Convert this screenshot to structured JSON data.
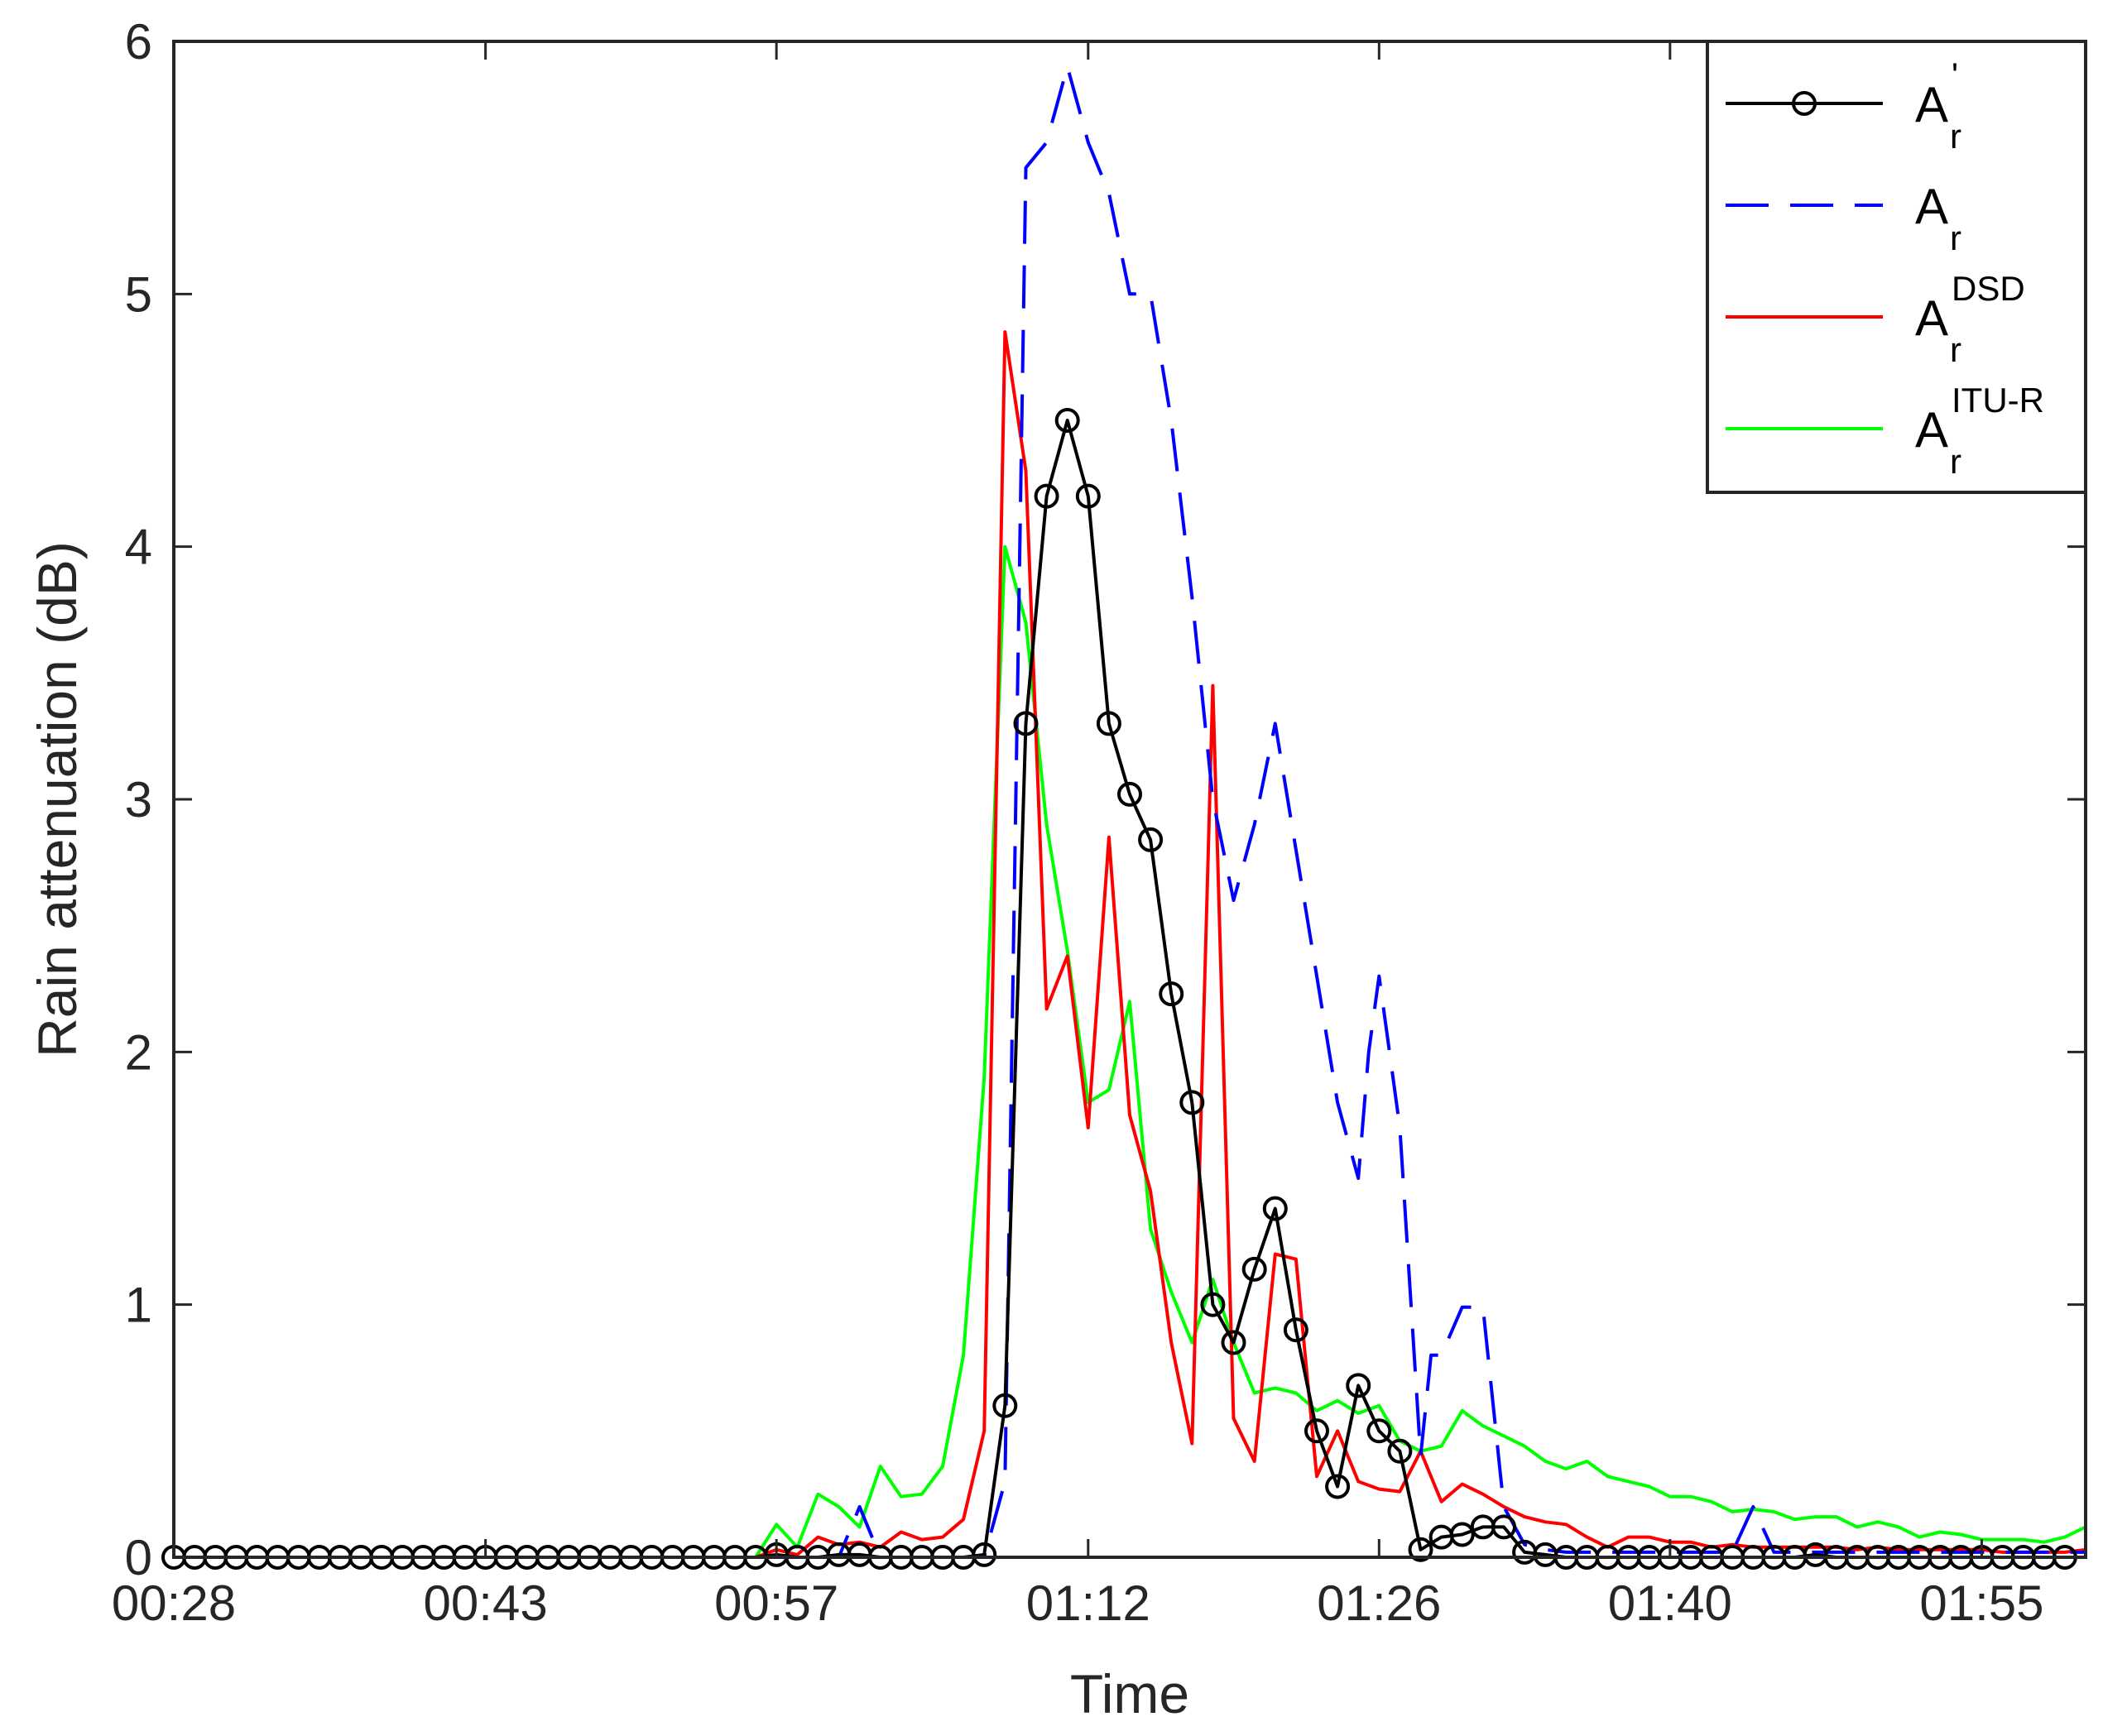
{
  "chart_data": {
    "type": "line",
    "xlabel": "Time",
    "ylabel": "Rain attenuation (dB)",
    "x_tick_labels": [
      "00:28",
      "00:43",
      "00:57",
      "01:12",
      "01:26",
      "01:40",
      "01:55"
    ],
    "y_tick_labels": [
      "0",
      "1",
      "2",
      "3",
      "4",
      "5",
      "6"
    ],
    "ylim": [
      0,
      6
    ],
    "xlim": [
      "00:28",
      "02:00"
    ],
    "grid": false,
    "legend_position": "top-right",
    "legend": [
      {
        "base": "A",
        "sup": "'",
        "sub": "r",
        "color": "#000000",
        "style": "solid-circle"
      },
      {
        "base": "A",
        "sup": "",
        "sub": "r",
        "color": "#0000ff",
        "style": "dashed"
      },
      {
        "base": "A",
        "sup": "DSD",
        "sub": "r",
        "color": "#ff0000",
        "style": "solid"
      },
      {
        "base": "A",
        "sup": "ITU-R",
        "sub": "r",
        "color": "#00ff00",
        "style": "solid"
      }
    ],
    "series": [
      {
        "name": "A'_r",
        "color": "#000000",
        "style": "solid",
        "marker": "circle",
        "x": [
          "00:28",
          "00:29",
          "00:30",
          "00:31",
          "00:32",
          "00:33",
          "00:34",
          "00:35",
          "00:36",
          "00:37",
          "00:38",
          "00:39",
          "00:40",
          "00:41",
          "00:42",
          "00:43",
          "00:44",
          "00:45",
          "00:46",
          "00:47",
          "00:48",
          "00:49",
          "00:50",
          "00:51",
          "00:52",
          "00:53",
          "00:54",
          "00:55",
          "00:56",
          "00:57",
          "00:58",
          "00:59",
          "01:00",
          "01:01",
          "01:02",
          "01:03",
          "01:04",
          "01:05",
          "01:06",
          "01:07",
          "01:08",
          "01:09",
          "01:10",
          "01:11",
          "01:12",
          "01:13",
          "01:14",
          "01:15",
          "01:16",
          "01:17",
          "01:18",
          "01:19",
          "01:20",
          "01:21",
          "01:22",
          "01:23",
          "01:24",
          "01:25",
          "01:26",
          "01:27",
          "01:28",
          "01:29",
          "01:30",
          "01:31",
          "01:32",
          "01:33",
          "01:34",
          "01:35",
          "01:36",
          "01:37",
          "01:38",
          "01:39",
          "01:40",
          "01:41",
          "01:42",
          "01:43",
          "01:44",
          "01:45",
          "01:46",
          "01:47",
          "01:48",
          "01:49",
          "01:50",
          "01:51",
          "01:52",
          "01:53",
          "01:54",
          "01:55",
          "01:56",
          "01:57",
          "01:58",
          "01:59"
        ],
        "y": [
          0,
          0,
          0,
          0,
          0,
          0,
          0,
          0,
          0,
          0,
          0,
          0,
          0,
          0,
          0,
          0,
          0,
          0,
          0,
          0,
          0,
          0,
          0,
          0,
          0,
          0,
          0,
          0,
          0,
          0.01,
          0,
          0,
          0.01,
          0.01,
          0,
          0,
          0,
          0,
          0,
          0.01,
          0.6,
          3.3,
          4.2,
          4.5,
          4.2,
          3.3,
          3.02,
          2.84,
          2.23,
          1.8,
          1.0,
          0.85,
          1.14,
          1.38,
          0.9,
          0.5,
          0.28,
          0.68,
          0.5,
          0.42,
          0.03,
          0.08,
          0.09,
          0.12,
          0.12,
          0.02,
          0.01,
          0,
          0,
          0,
          0,
          0,
          0,
          0,
          0,
          0,
          0,
          0,
          0,
          0.01,
          0,
          0,
          0,
          0,
          0,
          0,
          0,
          0,
          0,
          0,
          0,
          0
        ]
      },
      {
        "name": "A_r",
        "color": "#0000ff",
        "style": "dashed",
        "x": [
          "00:28",
          "00:57",
          "00:59",
          "01:00",
          "01:01",
          "01:02",
          "01:03",
          "01:04",
          "01:05",
          "01:06",
          "01:07",
          "01:08",
          "01:09",
          "01:10",
          "01:11",
          "01:12",
          "01:13",
          "01:14",
          "01:15",
          "01:16",
          "01:17",
          "01:18",
          "01:18:30",
          "01:19",
          "01:20",
          "01:21",
          "01:22",
          "01:23",
          "01:24",
          "01:25",
          "01:25:30",
          "01:26",
          "01:26:30",
          "01:27",
          "01:28",
          "01:28:30",
          "01:29",
          "01:30",
          "01:31",
          "01:32",
          "01:33",
          "01:34",
          "01:35",
          "01:43",
          "01:44",
          "01:45",
          "01:46",
          "01:47",
          "01:48",
          "01:49",
          "01:50",
          "01:51",
          "01:52",
          "01:53",
          "01:54",
          "01:55",
          "01:56",
          "01:57",
          "01:58",
          "01:59",
          "02:00"
        ],
        "y": [
          0,
          0,
          0,
          0,
          0.2,
          0,
          0,
          0,
          0,
          0,
          0,
          0.3,
          5.5,
          5.6,
          5.9,
          5.6,
          5.4,
          5.0,
          5.0,
          4.5,
          3.8,
          3.0,
          2.8,
          2.6,
          2.9,
          3.3,
          2.8,
          2.3,
          1.8,
          1.5,
          2.0,
          2.3,
          2.0,
          1.7,
          0.4,
          0.8,
          0.8,
          0.99,
          0.99,
          0.2,
          0.05,
          0.03,
          0.02,
          0.02,
          0.2,
          0.02,
          0.02,
          0.02,
          0.02,
          0.02,
          0.02,
          0.02,
          0.02,
          0.02,
          0.02,
          0.02,
          0.02,
          0.02,
          0.02,
          0.02,
          0.02
        ]
      },
      {
        "name": "A_r^DSD",
        "color": "#ff0000",
        "style": "solid",
        "x": [
          "00:28",
          "00:56",
          "00:57",
          "00:58",
          "00:59",
          "01:00",
          "01:01",
          "01:02",
          "01:03",
          "01:04",
          "01:05",
          "01:06",
          "01:07",
          "01:08",
          "01:09",
          "01:10",
          "01:11",
          "01:12",
          "01:13",
          "01:14",
          "01:15",
          "01:16",
          "01:17",
          "01:18",
          "01:19",
          "01:20",
          "01:21",
          "01:22",
          "01:23",
          "01:24",
          "01:25",
          "01:26",
          "01:27",
          "01:28",
          "01:29",
          "01:30",
          "01:31",
          "01:32",
          "01:33",
          "01:34",
          "01:35",
          "01:36",
          "01:37",
          "01:38",
          "01:39",
          "01:40",
          "01:41",
          "01:42",
          "01:43",
          "01:44",
          "01:45",
          "01:46",
          "01:47",
          "01:48",
          "01:49",
          "01:50",
          "01:51",
          "01:52",
          "01:53",
          "01:54",
          "01:55",
          "01:56",
          "01:57",
          "01:58",
          "01:59",
          "02:00"
        ],
        "y": [
          0,
          0,
          0.03,
          0.01,
          0.08,
          0.05,
          0.06,
          0.04,
          0.1,
          0.07,
          0.08,
          0.15,
          0.5,
          4.85,
          4.3,
          2.17,
          2.38,
          1.7,
          2.85,
          1.75,
          1.45,
          0.85,
          0.45,
          3.45,
          0.55,
          0.38,
          1.2,
          1.18,
          0.32,
          0.5,
          0.3,
          0.27,
          0.26,
          0.42,
          0.22,
          0.29,
          0.25,
          0.2,
          0.16,
          0.14,
          0.13,
          0.08,
          0.04,
          0.08,
          0.08,
          0.06,
          0.06,
          0.04,
          0.05,
          0.04,
          0.04,
          0.04,
          0.04,
          0.04,
          0.03,
          0.04,
          0.03,
          0.03,
          0.03,
          0.03,
          0.03,
          0.02,
          0.02,
          0.02,
          0.02,
          0.03
        ]
      },
      {
        "name": "A_r^ITU-R",
        "color": "#00ff00",
        "style": "solid",
        "x": [
          "00:28",
          "00:56",
          "00:57",
          "00:58",
          "00:59",
          "01:00",
          "01:01",
          "01:02",
          "01:03",
          "01:04",
          "01:05",
          "01:06",
          "01:07",
          "01:08",
          "01:09",
          "01:10",
          "01:11",
          "01:12",
          "01:13",
          "01:14",
          "01:15",
          "01:16",
          "01:17",
          "01:18",
          "01:19",
          "01:20",
          "01:21",
          "01:22",
          "01:23",
          "01:24",
          "01:25",
          "01:26",
          "01:27",
          "01:28",
          "01:29",
          "01:30",
          "01:31",
          "01:32",
          "01:33",
          "01:34",
          "01:35",
          "01:36",
          "01:37",
          "01:38",
          "01:39",
          "01:40",
          "01:41",
          "01:42",
          "01:43",
          "01:44",
          "01:45",
          "01:46",
          "01:47",
          "01:48",
          "01:49",
          "01:50",
          "01:51",
          "01:52",
          "01:53",
          "01:54",
          "01:55",
          "01:56",
          "01:57",
          "01:58",
          "01:59",
          "02:00"
        ],
        "y": [
          0,
          0,
          0.13,
          0.04,
          0.25,
          0.2,
          0.12,
          0.36,
          0.24,
          0.25,
          0.36,
          0.8,
          1.9,
          4.0,
          3.7,
          2.9,
          2.4,
          1.8,
          1.85,
          2.2,
          1.3,
          1.05,
          0.85,
          1.1,
          0.85,
          0.65,
          0.67,
          0.65,
          0.58,
          0.62,
          0.57,
          0.6,
          0.46,
          0.42,
          0.44,
          0.58,
          0.52,
          0.48,
          0.44,
          0.38,
          0.35,
          0.38,
          0.32,
          0.3,
          0.28,
          0.24,
          0.24,
          0.22,
          0.18,
          0.19,
          0.18,
          0.15,
          0.16,
          0.16,
          0.12,
          0.14,
          0.12,
          0.08,
          0.1,
          0.09,
          0.07,
          0.07,
          0.07,
          0.06,
          0.08,
          0.12
        ]
      }
    ]
  }
}
